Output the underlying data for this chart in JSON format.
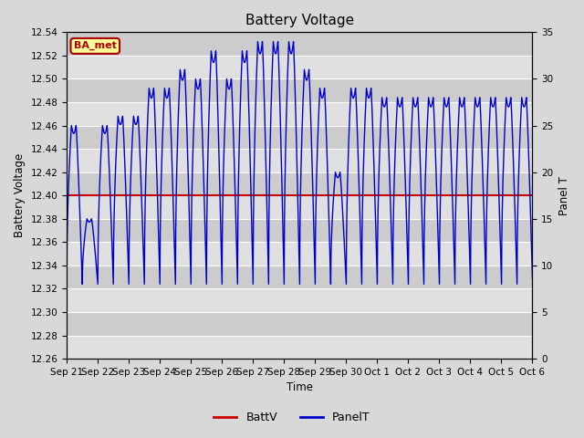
{
  "title": "Battery Voltage",
  "xlabel": "Time",
  "ylabel_left": "Battery Voltage",
  "ylabel_right": "Panel T",
  "ylim_left": [
    12.26,
    12.54
  ],
  "ylim_right": [
    0,
    35
  ],
  "batt_v": 12.4,
  "batt_color": "#cc0000",
  "panel_color": "#0000cc",
  "bg_color": "#d8d8d8",
  "plot_bg_color": "#d8d8d8",
  "band_color_light": "#e8e8e8",
  "band_color_dark": "#d0d0d0",
  "grid_color": "#ffffff",
  "legend_batt": "BattV",
  "legend_panel": "PanelT",
  "annotation_text": "BA_met",
  "annotation_bg": "#ffff99",
  "annotation_border": "#aa0000",
  "x_tick_labels": [
    "Sep 21",
    "Sep 22",
    "Sep 23",
    "Sep 24",
    "Sep 25",
    "Sep 26",
    "Sep 27",
    "Sep 28",
    "Sep 29",
    "Sep 30",
    "Oct 1",
    "Oct 2",
    "Oct 3",
    "Oct 4",
    "Oct 5",
    "Oct 6"
  ],
  "title_fontsize": 11,
  "tick_fontsize": 7.5,
  "label_fontsize": 8.5,
  "yticks_left": [
    12.26,
    12.28,
    12.3,
    12.32,
    12.34,
    12.36,
    12.38,
    12.4,
    12.42,
    12.44,
    12.46,
    12.48,
    12.5,
    12.52,
    12.54
  ],
  "yticks_right": [
    0,
    5,
    10,
    15,
    20,
    25,
    30,
    35
  ]
}
